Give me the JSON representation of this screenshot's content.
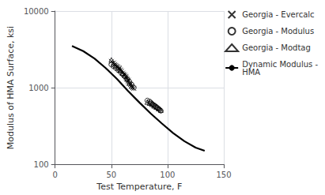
{
  "chart_data": {
    "type": "scatter",
    "xlabel": "Test Temperature, F",
    "ylabel": "Modulus of HMA Surface, ksi",
    "xlim": [
      0,
      150
    ],
    "ylim": [
      100,
      10000
    ],
    "xticks": [
      0,
      50,
      100,
      150
    ],
    "yticks": [
      100,
      1000,
      10000
    ],
    "log": "y",
    "grid": true,
    "legend": "right",
    "series": [
      {
        "name": "Georgia - Evercalc",
        "type": "scatter",
        "marker": "cross",
        "color": "#000000",
        "x": [
          50,
          52,
          53,
          54,
          55,
          56,
          57,
          57,
          58,
          59,
          60,
          61,
          62,
          63,
          63,
          64,
          65,
          65,
          66,
          67,
          68,
          69,
          70
        ],
        "values": [
          2200,
          2100,
          2000,
          1950,
          1900,
          1850,
          1800,
          1750,
          1700,
          1650,
          1550,
          1500,
          1450,
          1400,
          1350,
          1300,
          1250,
          1200,
          1150,
          1100,
          1050,
          1000,
          980
        ]
      },
      {
        "name": "Georgia - Modulus",
        "type": "scatter",
        "marker": "circle",
        "color": "#000000",
        "x": [
          50,
          52,
          54,
          56,
          58,
          60,
          62,
          64,
          66,
          68,
          70,
          82,
          84,
          85,
          86,
          87,
          88,
          89,
          90,
          91,
          92,
          93,
          94
        ],
        "values": [
          2000,
          1900,
          1800,
          1700,
          1600,
          1500,
          1400,
          1300,
          1200,
          1100,
          1000,
          680,
          660,
          640,
          620,
          600,
          590,
          575,
          560,
          545,
          530,
          515,
          500
        ]
      },
      {
        "name": "Georgia - Modtag",
        "type": "scatter",
        "marker": "triangle",
        "color": "#000000",
        "x": [
          50,
          52,
          54,
          56,
          58,
          60,
          62,
          64,
          66,
          68,
          82,
          84,
          86,
          88,
          90,
          92,
          94
        ],
        "values": [
          2300,
          2100,
          1950,
          1850,
          1700,
          1550,
          1450,
          1300,
          1150,
          1050,
          650,
          630,
          610,
          580,
          560,
          535,
          510
        ]
      },
      {
        "name": "Dynamic Modulus -\nHMA",
        "type": "line",
        "line_style": "solid",
        "color": "#000000",
        "x": [
          15,
          25,
          35,
          45,
          55,
          65,
          75,
          85,
          95,
          105,
          115,
          125,
          133
        ],
        "values": [
          3500,
          3000,
          2400,
          1800,
          1300,
          900,
          640,
          460,
          340,
          255,
          200,
          165,
          150
        ]
      }
    ]
  }
}
